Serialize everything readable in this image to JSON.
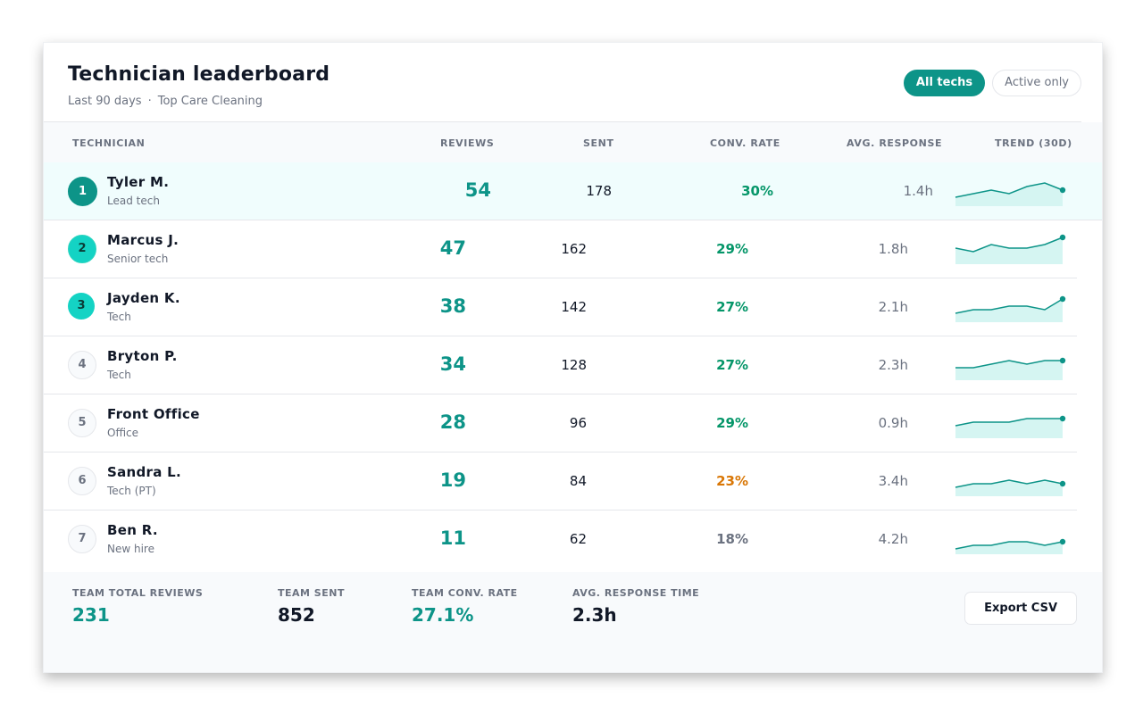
{
  "header": {
    "title": "Technician leaderboard",
    "period": "Last 90 days",
    "separator": "·",
    "company": "Top Care Cleaning"
  },
  "filters": [
    {
      "label": "All techs",
      "active": true
    },
    {
      "label": "Active only",
      "active": false
    }
  ],
  "columns": {
    "technician": "TECHNICIAN",
    "reviews": "REVIEWS",
    "sent": "SENT",
    "conv_rate": "CONV. RATE",
    "avg_response": "AVG. RESPONSE",
    "trend": "TREND (30D)"
  },
  "technicians": [
    {
      "rank": "1",
      "name": "Tyler M.",
      "role": "Lead tech",
      "reviews": "54",
      "sent": "178",
      "conv_rate": "30%",
      "avg_response": "1.4h",
      "trend": [
        3,
        4,
        5,
        4,
        6,
        7,
        5
      ]
    },
    {
      "rank": "2",
      "name": "Marcus J.",
      "role": "Senior tech",
      "reviews": "47",
      "sent": "162",
      "conv_rate": "29%",
      "avg_response": "1.8h",
      "trend": [
        5,
        4,
        6,
        5,
        5,
        6,
        8
      ]
    },
    {
      "rank": "3",
      "name": "Jayden K.",
      "role": "Tech",
      "reviews": "38",
      "sent": "142",
      "conv_rate": "27%",
      "avg_response": "2.1h",
      "trend": [
        3,
        4,
        4,
        5,
        5,
        4,
        7
      ]
    },
    {
      "rank": "4",
      "name": "Bryton P.",
      "role": "Tech",
      "reviews": "34",
      "sent": "128",
      "conv_rate": "27%",
      "avg_response": "2.3h",
      "trend": [
        4,
        4,
        5,
        6,
        5,
        6,
        6
      ]
    },
    {
      "rank": "5",
      "name": "Front Office",
      "role": "Office",
      "reviews": "28",
      "sent": "96",
      "conv_rate": "29%",
      "avg_response": "0.9h",
      "trend": [
        4,
        5,
        5,
        5,
        6,
        6,
        6
      ]
    },
    {
      "rank": "6",
      "name": "Sandra L.",
      "role": "Tech (PT)",
      "reviews": "19",
      "sent": "84",
      "conv_rate": "23%",
      "avg_response": "3.4h",
      "trend": [
        3,
        4,
        4,
        5,
        4,
        5,
        4
      ]
    },
    {
      "rank": "7",
      "name": "Ben R.",
      "role": "New hire",
      "reviews": "11",
      "sent": "62",
      "conv_rate": "18%",
      "avg_response": "4.2h",
      "trend": [
        2,
        3,
        3,
        4,
        4,
        3,
        4
      ]
    }
  ],
  "footer": {
    "total_reviews_label": "TEAM TOTAL REVIEWS",
    "total_reviews": "231",
    "team_sent_label": "TEAM SENT",
    "team_sent": "852",
    "team_conv_label": "TEAM CONV. RATE",
    "team_conv": "27.1%",
    "avg_response_label": "AVG. RESPONSE TIME",
    "avg_response": "2.3h",
    "export_label": "Export CSV"
  },
  "colors": {
    "accent": "#0d9488",
    "conv_good": "#059669",
    "conv_warn": "#d97706",
    "conv_low": "#6b7280",
    "spark_line": "#0d9488",
    "spark_fill": "#d5f5f2"
  }
}
